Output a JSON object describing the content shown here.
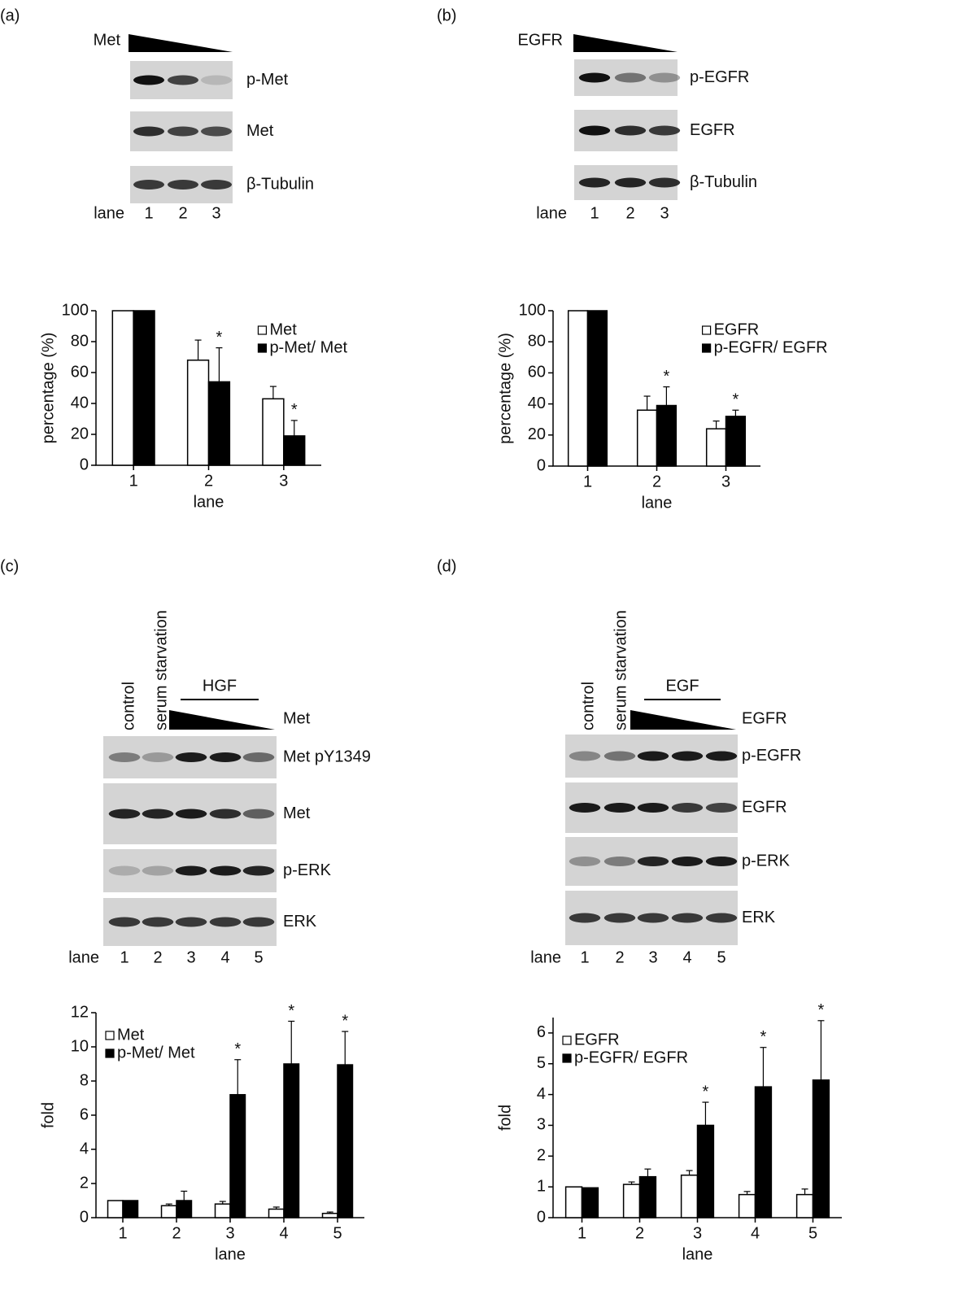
{
  "blots": [
    {
      "panel": "(a)",
      "gradient": "Met",
      "rows": [
        "p-Met",
        "Met",
        "β-Tubulin"
      ],
      "lane_label": "lane",
      "lanes": [
        "1",
        "2",
        "3"
      ]
    },
    {
      "panel": "(b)",
      "gradient": "EGFR",
      "rows": [
        "p-EGFR",
        "EGFR",
        "β-Tubulin"
      ],
      "lane_label": "lane",
      "lanes": [
        "1",
        "2",
        "3"
      ]
    },
    {
      "panel": "(c)",
      "columns": [
        "control",
        "serum starvation"
      ],
      "bracket": "HGF",
      "gradient": "Met",
      "rows": [
        "Met pY1349",
        "Met",
        "p-ERK",
        "ERK"
      ],
      "lane_label": "lane",
      "lanes": [
        "1",
        "2",
        "3",
        "4",
        "5"
      ]
    },
    {
      "panel": "(d)",
      "columns": [
        "control",
        "serum starvation"
      ],
      "bracket": "EGF",
      "gradient": "EGFR",
      "rows": [
        "p-EGFR",
        "EGFR",
        "p-ERK",
        "ERK"
      ],
      "lane_label": "lane",
      "lanes": [
        "1",
        "2",
        "3",
        "4",
        "5"
      ]
    }
  ],
  "chart_data": [
    {
      "type": "bar",
      "y_label": "percentage (%)",
      "x_label": "lane",
      "categories": [
        "1",
        "2",
        "3"
      ],
      "ylim": [
        0,
        100
      ],
      "yticks": [
        0,
        20,
        40,
        60,
        80,
        100
      ],
      "legend": "upper right",
      "series": [
        {
          "name": "Met",
          "color": "#ffffff",
          "values": [
            100,
            68,
            43
          ],
          "errors": [
            0,
            13,
            8
          ]
        },
        {
          "name": "p-Met/ Met",
          "color": "#000000",
          "values": [
            100,
            54,
            19
          ],
          "errors": [
            0,
            22,
            10
          ],
          "markers": [
            null,
            "*",
            "*"
          ]
        }
      ]
    },
    {
      "type": "bar",
      "y_label": "percentage (%)",
      "x_label": "lane",
      "categories": [
        "1",
        "2",
        "3"
      ],
      "ylim": [
        0,
        100
      ],
      "yticks": [
        0,
        20,
        40,
        60,
        80,
        100
      ],
      "legend": "upper right",
      "series": [
        {
          "name": "EGFR",
          "color": "#ffffff",
          "values": [
            100,
            36,
            24
          ],
          "errors": [
            0,
            9,
            5
          ]
        },
        {
          "name": "p-EGFR/ EGFR",
          "color": "#000000",
          "values": [
            100,
            39,
            32
          ],
          "errors": [
            0,
            12,
            4
          ],
          "markers": [
            null,
            "*",
            "*"
          ]
        }
      ]
    },
    {
      "type": "bar",
      "y_label": "fold",
      "x_label": "lane",
      "categories": [
        "1",
        "2",
        "3",
        "4",
        "5"
      ],
      "ylim": [
        0,
        12
      ],
      "yticks": [
        0,
        2,
        4,
        6,
        8,
        10,
        12
      ],
      "legend": "upper left",
      "series": [
        {
          "name": "Met",
          "color": "#ffffff",
          "values": [
            1,
            0.7,
            0.8,
            0.5,
            0.25
          ],
          "errors": [
            0,
            0.1,
            0.15,
            0.12,
            0.08
          ]
        },
        {
          "name": "p-Met/ Met",
          "color": "#000000",
          "values": [
            1,
            1,
            7.2,
            9,
            8.95
          ],
          "errors": [
            0,
            0.55,
            2.05,
            2.5,
            1.95
          ],
          "markers": [
            null,
            null,
            "*",
            "*",
            "*"
          ]
        }
      ]
    },
    {
      "type": "bar",
      "y_label": "fold",
      "x_label": "lane",
      "categories": [
        "1",
        "2",
        "3",
        "4",
        "5"
      ],
      "ylim": [
        0,
        6.5
      ],
      "yticks": [
        0,
        1,
        2,
        3,
        4,
        5,
        6
      ],
      "legend": "upper left",
      "series": [
        {
          "name": "EGFR",
          "color": "#ffffff",
          "values": [
            1,
            1.08,
            1.38,
            0.75,
            0.75
          ],
          "errors": [
            0,
            0.08,
            0.15,
            0.1,
            0.18
          ]
        },
        {
          "name": "p-EGFR/ EGFR",
          "color": "#000000",
          "values": [
            0.97,
            1.33,
            3.0,
            4.25,
            4.47
          ],
          "errors": [
            0,
            0.25,
            0.75,
            1.28,
            1.93
          ],
          "markers": [
            null,
            null,
            "*",
            "*",
            "*"
          ]
        }
      ]
    }
  ]
}
